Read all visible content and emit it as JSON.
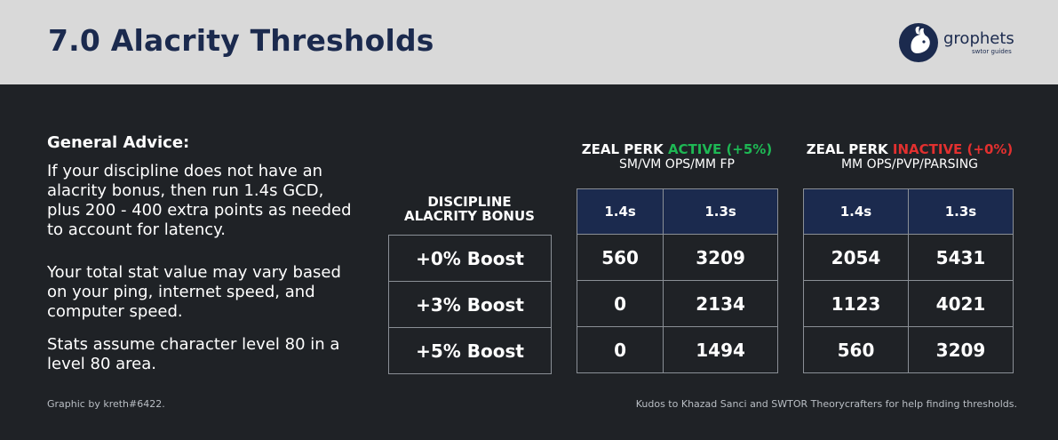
{
  "header": {
    "title": "7.0 Alacrity Thresholds",
    "logo": {
      "name": "grophets",
      "subtitle": "swtor guides"
    }
  },
  "advice": {
    "heading": "General Advice:",
    "paragraphs": [
      "If your discipline does not have an alacrity bonus, then run 1.4s GCD, plus 200 - 400 extra points as needed to account for latency.",
      "Your total stat value may vary based on your ping, internet speed, and computer speed.",
      "Stats assume character level 80 in a level 80 area."
    ]
  },
  "table": {
    "discipline_header": [
      "DISCIPLINE",
      "ALACRITY BONUS"
    ],
    "rows": [
      "+0% Boost",
      "+3% Boost",
      "+5% Boost"
    ],
    "active": {
      "prefix": "ZEAL PERK ",
      "status": "ACTIVE (+5%)",
      "subtitle": "SM/VM OPS/MM FP",
      "columns": [
        "1.4s",
        "1.3s"
      ],
      "values": [
        [
          "560",
          "3209"
        ],
        [
          "0",
          "2134"
        ],
        [
          "0",
          "1494"
        ]
      ]
    },
    "inactive": {
      "prefix": "ZEAL PERK ",
      "status": "INACTIVE (+0%)",
      "subtitle": "MM OPS/PVP/PARSING",
      "columns": [
        "1.4s",
        "1.3s"
      ],
      "values": [
        [
          "2054",
          "5431"
        ],
        [
          "1123",
          "4021"
        ],
        [
          "560",
          "3209"
        ]
      ]
    }
  },
  "footer": {
    "left": "Graphic by kreth#6422.",
    "right": "Kudos to Khazad Sanci and SWTOR Theorycrafters for help finding thresholds."
  },
  "colors": {
    "background": "#1f2226",
    "header_bg": "#d9d9d9",
    "navy": "#1b2a4e",
    "active_green": "#1eb854",
    "inactive_red": "#e2302f"
  }
}
